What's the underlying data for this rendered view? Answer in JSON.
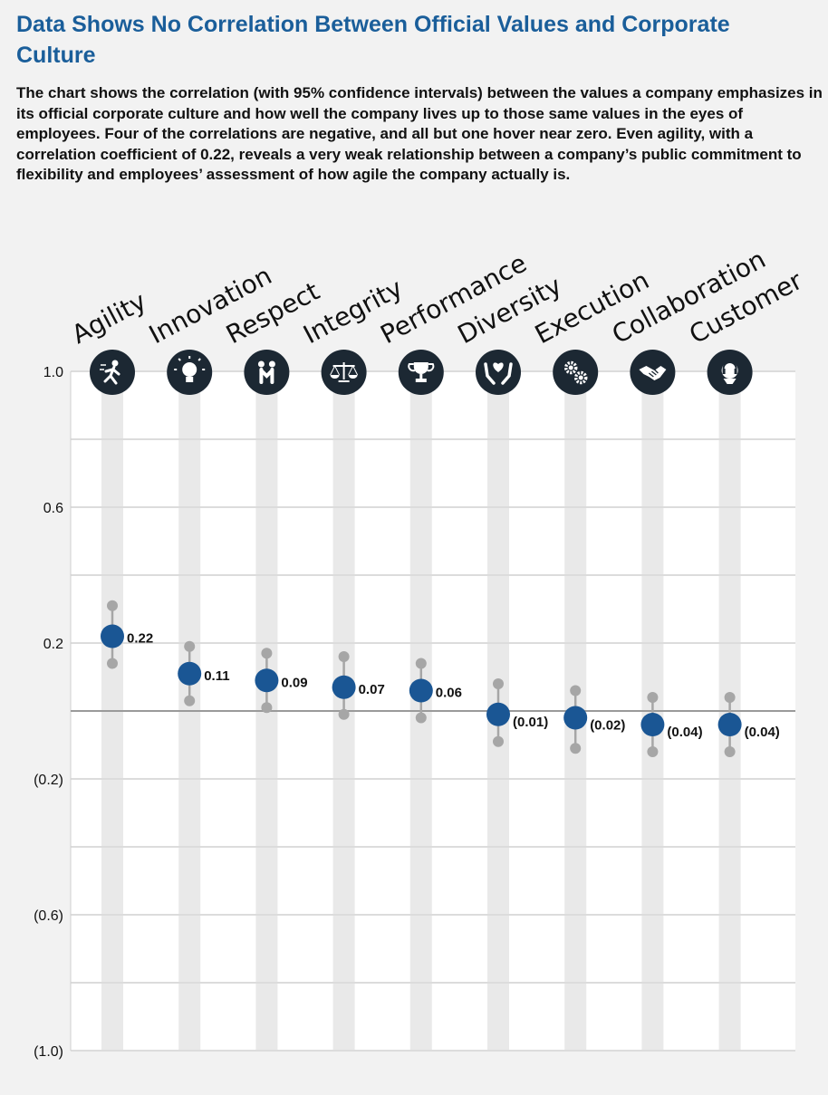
{
  "header": {
    "title": "Data Shows No Correlation Between Official Values and Corporate Culture",
    "subtitle": "The chart shows the correlation (with 95% confidence intervals) between the values a company emphasizes in its official corporate culture and how well the company lives up to those same values in the eyes of employees. Four of the correlations are negative, and all but one hover near zero. Even agility, with a correlation coefficient of 0.22, reveals a very weak relationship between a company’s public commitment to flexibility and employees’ assessment of how agile the company actually is."
  },
  "colors": {
    "accent": "#1a5e9a",
    "point": "#1a5694",
    "ci": "#a6a6a6",
    "icon_bg": "#1c2833",
    "background": "#f2f2f2",
    "plot_bg": "#ffffff",
    "band": "#e9e9e9",
    "zero_line": "#9a9a9a"
  },
  "chart_data": {
    "type": "scatter",
    "orientation": "vertical dot plot with error bars",
    "ylim": [
      -1.0,
      1.0
    ],
    "yticks": [
      1.0,
      0.6,
      0.2,
      -0.2,
      -0.6,
      -1.0
    ],
    "ytick_labels": [
      "1.0",
      "0.6",
      "0.2",
      "(0.2)",
      "(0.6)",
      "(1.0)"
    ],
    "grid": true,
    "zero_line": true,
    "categories": [
      "Agility",
      "Innovation",
      "Respect",
      "Integrity",
      "Performance",
      "Diversity",
      "Execution",
      "Collaboration",
      "Customer"
    ],
    "icons": [
      "running-person-icon",
      "lightbulb-icon",
      "two-people-icon",
      "scales-icon",
      "trophy-icon",
      "hands-holding-heart-icon",
      "gears-icon",
      "handshake-icon",
      "headset-icon"
    ],
    "values": [
      0.22,
      0.11,
      0.09,
      0.07,
      0.06,
      -0.01,
      -0.02,
      -0.04,
      -0.04
    ],
    "value_labels": [
      "0.22",
      "0.11",
      "0.09",
      "0.07",
      "0.06",
      "(0.01)",
      "(0.02)",
      "(0.04)",
      "(0.04)"
    ],
    "ci_low": [
      0.14,
      0.03,
      0.01,
      -0.01,
      -0.02,
      -0.09,
      -0.11,
      -0.12,
      -0.12
    ],
    "ci_high": [
      0.31,
      0.19,
      0.17,
      0.16,
      0.14,
      0.08,
      0.06,
      0.04,
      0.04
    ]
  }
}
